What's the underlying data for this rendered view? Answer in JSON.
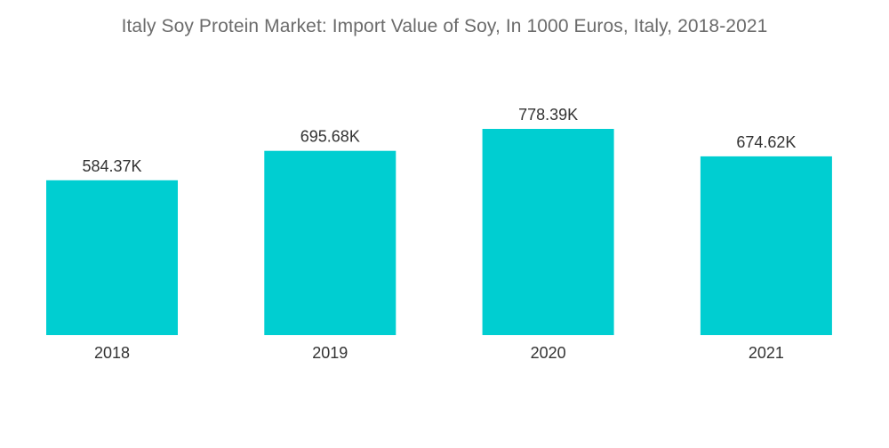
{
  "chart_data": {
    "type": "bar",
    "title": "Italy Soy Protein Market: Import Value of Soy, In 1000 Euros, Italy, 2018-2021",
    "xlabel": "",
    "ylabel": "",
    "categories": [
      "2018",
      "2019",
      "2020",
      "2021"
    ],
    "values": [
      584.37,
      695.68,
      778.39,
      674.62
    ],
    "value_labels": [
      "584.37K",
      "695.68K",
      "778.39K",
      "674.62K"
    ],
    "ylim": [
      0,
      778.39
    ],
    "grid": false,
    "legend": "none",
    "bar_color": "#00CED1"
  }
}
